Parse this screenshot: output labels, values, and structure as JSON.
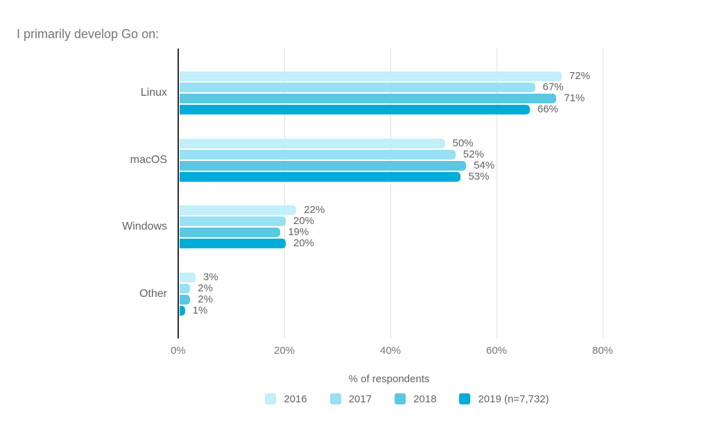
{
  "title": "I primarily develop Go on:",
  "chart_data": {
    "type": "bar",
    "orientation": "horizontal",
    "title": "I primarily develop Go on:",
    "xlabel": "% of respondents",
    "xlim": [
      0,
      89
    ],
    "x_ticks": [
      0,
      20,
      40,
      60,
      80
    ],
    "x_tick_labels": [
      "0%",
      "20%",
      "40%",
      "60%",
      "80%"
    ],
    "grid": "vertical-gridlines-only",
    "legend_position": "bottom-center",
    "value_label_format": "{value}%",
    "categories": [
      "Linux",
      "macOS",
      "Windows",
      "Other"
    ],
    "series": [
      {
        "name": "2016",
        "color": "#C2EFFA",
        "values": [
          72,
          50,
          22,
          3
        ]
      },
      {
        "name": "2017",
        "color": "#98E0F3",
        "values": [
          67,
          52,
          20,
          2
        ]
      },
      {
        "name": "2018",
        "color": "#5BC8E2",
        "values": [
          71,
          54,
          19,
          2
        ]
      },
      {
        "name": "2019 (n=7,732)",
        "color": "#00ACD8",
        "values": [
          66,
          53,
          20,
          1
        ]
      }
    ]
  },
  "colors": {
    "background": "#FFFFFF",
    "axis_line": "#2B2B2B",
    "gridline": "#E0E0E0",
    "title_text": "#757575",
    "label_text": "#616161",
    "tick_text": "#757575"
  }
}
